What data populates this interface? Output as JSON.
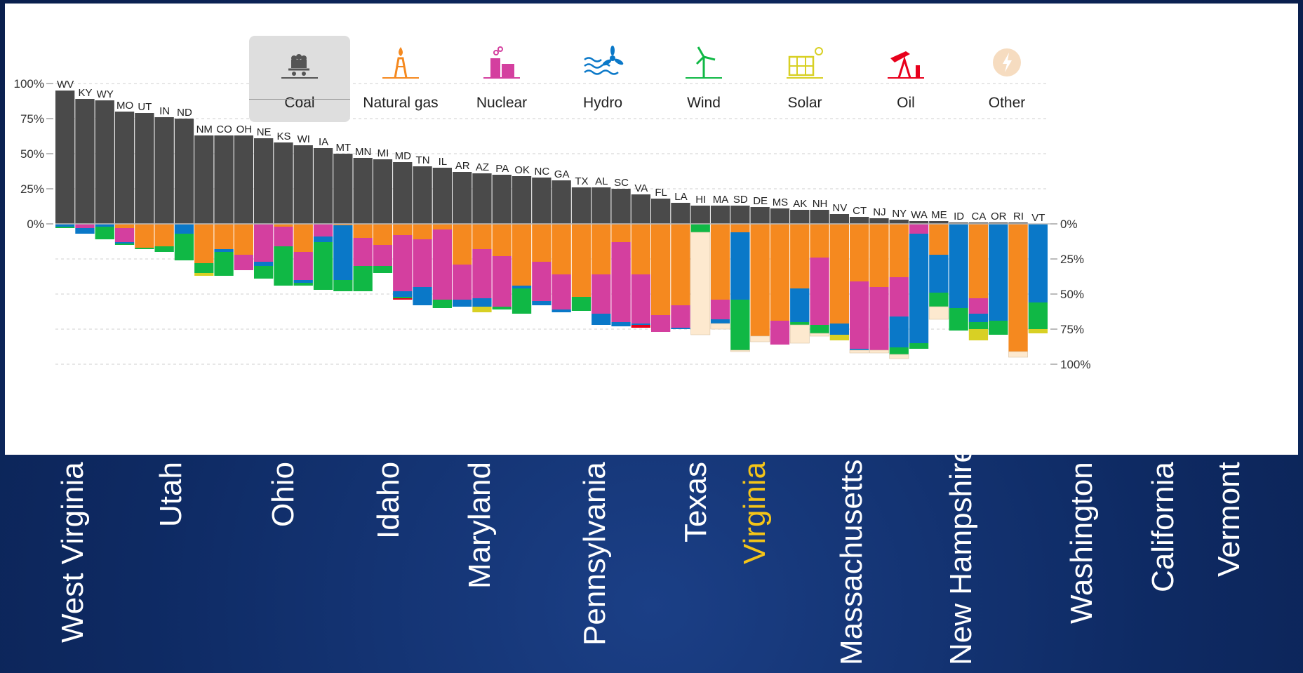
{
  "legend": [
    {
      "key": "coal",
      "label": "Coal",
      "icon": "coal-cart-icon",
      "color": "#4a4a4a",
      "active": true
    },
    {
      "key": "gas",
      "label": "Natural gas",
      "icon": "gas-derrick-icon",
      "color": "#f5891f"
    },
    {
      "key": "nuclear",
      "label": "Nuclear",
      "icon": "nuclear-plant-icon",
      "color": "#d43f9f"
    },
    {
      "key": "hydro",
      "label": "Hydro",
      "icon": "hydro-wave-icon",
      "color": "#0a78c8"
    },
    {
      "key": "wind",
      "label": "Wind",
      "icon": "wind-turbine-icon",
      "color": "#10b845"
    },
    {
      "key": "solar",
      "label": "Solar",
      "icon": "solar-panel-icon",
      "color": "#d8d024"
    },
    {
      "key": "oil",
      "label": "Oil",
      "icon": "oil-pump-icon",
      "color": "#e8001c"
    },
    {
      "key": "other",
      "label": "Other",
      "icon": "lightning-bolt-icon",
      "color": "#fde9cf"
    }
  ],
  "state_labels": [
    {
      "text": "West Virginia",
      "highlight": false
    },
    {
      "text": "Utah",
      "highlight": false
    },
    {
      "text": "Ohio",
      "highlight": false
    },
    {
      "text": "Idaho",
      "highlight": false
    },
    {
      "text": "Maryland",
      "highlight": false
    },
    {
      "text": "Pennsylvania",
      "highlight": false
    },
    {
      "text": "Texas",
      "highlight": false
    },
    {
      "text": "Virginia",
      "highlight": true
    },
    {
      "text": "Massachusetts",
      "highlight": false
    },
    {
      "text": "New Hampshire",
      "highlight": false
    },
    {
      "text": "Washington",
      "highlight": false
    },
    {
      "text": "California",
      "highlight": false
    },
    {
      "text": "Vermont",
      "highlight": false
    }
  ],
  "chart_data": {
    "type": "bar",
    "top_axis": {
      "ticks": [
        "100%",
        "75%",
        "50%",
        "25%",
        "0%"
      ],
      "values": [
        100,
        75,
        50,
        25,
        0
      ]
    },
    "bottom_axis": {
      "ticks": [
        "0%",
        "25%",
        "50%",
        "75%",
        "100%"
      ],
      "values": [
        0,
        25,
        50,
        75,
        100
      ]
    },
    "grid": true,
    "top_series": "coal",
    "bottom_stack_order": [
      "gas",
      "nuclear",
      "hydro",
      "wind",
      "solar",
      "oil",
      "other"
    ],
    "categories": [
      "WV",
      "KY",
      "WY",
      "MO",
      "UT",
      "IN",
      "ND",
      "NM",
      "CO",
      "OH",
      "NE",
      "KS",
      "WI",
      "IA",
      "MT",
      "MN",
      "MI",
      "MD",
      "TN",
      "IL",
      "AR",
      "AZ",
      "PA",
      "OK",
      "NC",
      "GA",
      "TX",
      "AL",
      "SC",
      "VA",
      "FL",
      "LA",
      "HI",
      "MA",
      "SD",
      "DE",
      "MS",
      "AK",
      "NH",
      "NV",
      "CT",
      "NJ",
      "NY",
      "WA",
      "ME",
      "ID",
      "CA",
      "OR",
      "RI",
      "VT"
    ],
    "coal": [
      95,
      89,
      88,
      80,
      79,
      76,
      75,
      63,
      63,
      63,
      61,
      58,
      56,
      54,
      50,
      47,
      46,
      44,
      41,
      40,
      37,
      36,
      35,
      34,
      33,
      31,
      26,
      26,
      25,
      21,
      18,
      15,
      13,
      13,
      13,
      12,
      11,
      10,
      10,
      7,
      5,
      4,
      3,
      2,
      2,
      1,
      1,
      1,
      1,
      0
    ],
    "stacks": [
      [
        0,
        0,
        2,
        1,
        0,
        0,
        0,
        1
      ],
      [
        0,
        3,
        4,
        0,
        0,
        0,
        0,
        1.5
      ],
      [
        0,
        0,
        2,
        9,
        0,
        0,
        0,
        1.5
      ],
      [
        3,
        10,
        1,
        1,
        0,
        0,
        0,
        1
      ],
      [
        17,
        0,
        0,
        1,
        0,
        0,
        0,
        1
      ],
      [
        16,
        0,
        0,
        4,
        0,
        0,
        0,
        3
      ],
      [
        0,
        0,
        7,
        19,
        0,
        0,
        0,
        0
      ],
      [
        28,
        0,
        0,
        7,
        2,
        0,
        0,
        0
      ],
      [
        18,
        0,
        2,
        17,
        0,
        0,
        0,
        1
      ],
      [
        22,
        11,
        0,
        0,
        0,
        0,
        0,
        3
      ],
      [
        0,
        27,
        3,
        9,
        0,
        0,
        0,
        2
      ],
      [
        2,
        14,
        0,
        28,
        0,
        0,
        0,
        1
      ],
      [
        20,
        20,
        2,
        2,
        0,
        0,
        0,
        3
      ],
      [
        0,
        9,
        4,
        34,
        0,
        0,
        0,
        0
      ],
      [
        1,
        0,
        39,
        8,
        0,
        0,
        0,
        3
      ],
      [
        10,
        20,
        0,
        18,
        0,
        0,
        0,
        3
      ],
      [
        15,
        15,
        0,
        5,
        0,
        0,
        0,
        5
      ],
      [
        8,
        40,
        4,
        1,
        0,
        1,
        0,
        4
      ],
      [
        11,
        34,
        13,
        0,
        0,
        0,
        0,
        2
      ],
      [
        4,
        50,
        0,
        6,
        0,
        0,
        0,
        2
      ],
      [
        29,
        25,
        5,
        0,
        0,
        0,
        0,
        3
      ],
      [
        18,
        35,
        6,
        0,
        4,
        0,
        0,
        1
      ],
      [
        23,
        36,
        0,
        2,
        0,
        0,
        0,
        2
      ],
      [
        44,
        0,
        2,
        18,
        0,
        0,
        0,
        1
      ],
      [
        27,
        28,
        3,
        0,
        0,
        0,
        0,
        3
      ],
      [
        36,
        25,
        2,
        0,
        0,
        0,
        0,
        4
      ],
      [
        52,
        0,
        0,
        10,
        0,
        0,
        0,
        2
      ],
      [
        36,
        28,
        8,
        0,
        0,
        0,
        0,
        2
      ],
      [
        13,
        57,
        3,
        0,
        0,
        0,
        0,
        1
      ],
      [
        36,
        35,
        1,
        0,
        0,
        2,
        0,
        4
      ],
      [
        65,
        12,
        0,
        0,
        0,
        0,
        0,
        4
      ],
      [
        58,
        16,
        1,
        0,
        0,
        0,
        0,
        10
      ],
      [
        0,
        0,
        0,
        6,
        0,
        0,
        73,
        9
      ],
      [
        54,
        14,
        3,
        0,
        0,
        0,
        4,
        9
      ],
      [
        6,
        0,
        48,
        36,
        0,
        0,
        1,
        0
      ],
      [
        80,
        0,
        0,
        0,
        0,
        0,
        4,
        4
      ],
      [
        69,
        17,
        0,
        0,
        0,
        0,
        0,
        4
      ],
      [
        46,
        0,
        24,
        2,
        0,
        0,
        13,
        6
      ],
      [
        24,
        48,
        0,
        6,
        0,
        0,
        2,
        9
      ],
      [
        71,
        0,
        8,
        0,
        4,
        0,
        0,
        10
      ],
      [
        41,
        48,
        1,
        0,
        0,
        0,
        2,
        5
      ],
      [
        45,
        45,
        0,
        0,
        0,
        0,
        2,
        2
      ],
      [
        38,
        28,
        22,
        5,
        0,
        0,
        3,
        3
      ],
      [
        0,
        7,
        78,
        4,
        0,
        0,
        0,
        3
      ],
      [
        22,
        0,
        27,
        10,
        0,
        0,
        9,
        30
      ],
      [
        0,
        0,
        60,
        16,
        0,
        0,
        0,
        5
      ],
      [
        53,
        11,
        6,
        5,
        8,
        0,
        0,
        12
      ],
      [
        0,
        0,
        69,
        10,
        0,
        0,
        0,
        0
      ],
      [
        91,
        0,
        0,
        0,
        0,
        0,
        4,
        4
      ],
      [
        0,
        0,
        56,
        19,
        3,
        0,
        0,
        22
      ]
    ]
  }
}
